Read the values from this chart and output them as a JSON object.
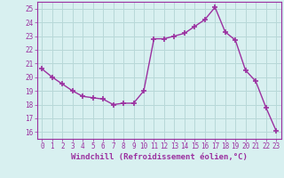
{
  "x": [
    0,
    1,
    2,
    3,
    4,
    5,
    6,
    7,
    8,
    9,
    10,
    11,
    12,
    13,
    14,
    15,
    16,
    17,
    18,
    19,
    20,
    21,
    22,
    23
  ],
  "y": [
    20.6,
    20.0,
    19.5,
    19.0,
    18.6,
    18.5,
    18.4,
    18.0,
    18.1,
    18.1,
    19.0,
    22.8,
    22.8,
    23.0,
    23.2,
    23.7,
    24.2,
    25.1,
    23.3,
    22.7,
    20.5,
    19.7,
    17.8,
    16.1
  ],
  "line_color": "#9b30a0",
  "marker": "+",
  "marker_size": 4,
  "linewidth": 1.0,
  "xlabel": "Windchill (Refroidissement éolien,°C)",
  "xlabel_fontsize": 6.5,
  "ylabel_ticks": [
    16,
    17,
    18,
    19,
    20,
    21,
    22,
    23,
    24,
    25
  ],
  "xtick_labels": [
    "0",
    "1",
    "2",
    "3",
    "4",
    "5",
    "6",
    "7",
    "8",
    "9",
    "10",
    "11",
    "12",
    "13",
    "14",
    "15",
    "16",
    "17",
    "18",
    "19",
    "20",
    "21",
    "22",
    "23"
  ],
  "xlim": [
    -0.5,
    23.5
  ],
  "ylim": [
    15.5,
    25.5
  ],
  "bg_color": "#d8f0f0",
  "grid_color": "#b8d8d8",
  "tick_color": "#9b30a0",
  "label_color": "#9b30a0",
  "tick_fontsize": 5.5,
  "marker_color": "#9b30a0"
}
